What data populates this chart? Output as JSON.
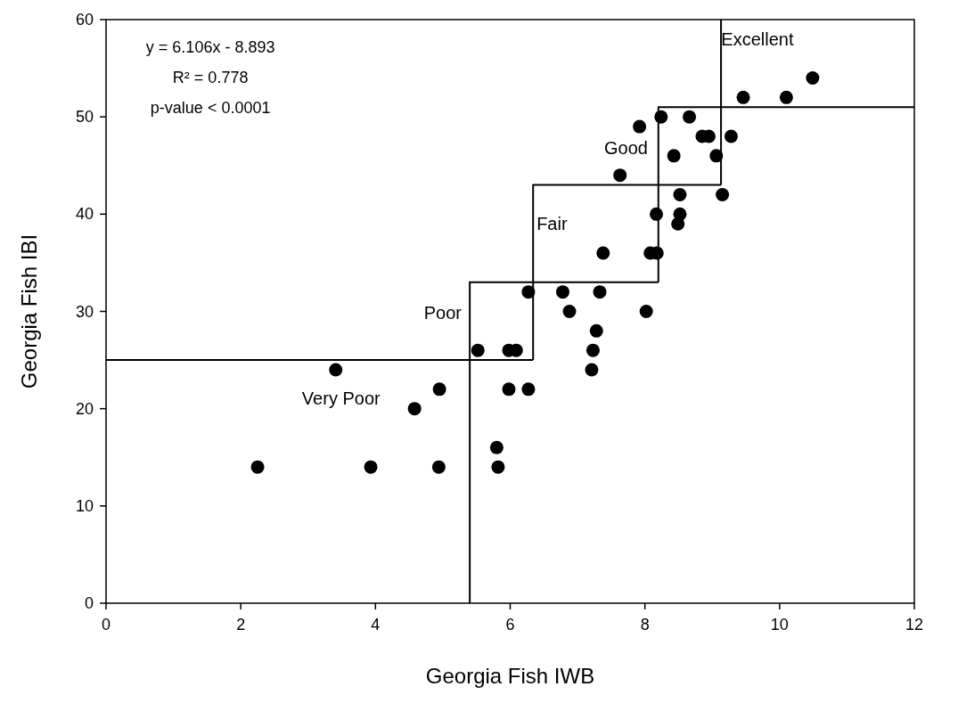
{
  "chart_data": {
    "type": "scatter",
    "xlabel": "Georgia Fish IWB",
    "ylabel": "Georgia Fish IBI",
    "xlim": [
      0,
      12
    ],
    "xticks": [
      0,
      2,
      4,
      6,
      8,
      10,
      12
    ],
    "ylim": [
      0,
      60
    ],
    "yticks": [
      0,
      10,
      20,
      30,
      40,
      50,
      60
    ],
    "grid": false,
    "marker": "circle",
    "annotations": [
      "y = 6.106x - 8.893",
      "R² = 0.778",
      "p-value < 0.0001",
      "Very Poor",
      "Poor",
      "Fair",
      "Good",
      "Excellent"
    ],
    "series": [
      {
        "color": "#000000",
        "x": [
          2.25,
          3.41,
          3.93,
          4.58,
          4.95,
          4.94,
          5.52,
          5.98,
          6.09,
          5.98,
          6.27,
          6.27,
          6.78,
          7.33,
          6.88,
          7.28,
          7.23,
          7.21,
          8.02,
          5.8,
          5.82,
          7.38,
          8.08,
          8.18,
          8.17,
          8.52,
          8.49,
          8.52,
          9.15,
          8.43,
          9.06,
          8.85,
          8.95,
          9.28,
          7.63,
          7.92,
          8.24,
          8.66,
          9.46,
          10.1,
          10.49
        ],
        "values": [
          14,
          24,
          14,
          20,
          22,
          14,
          26,
          26,
          26,
          22,
          22,
          32,
          32,
          32,
          30,
          28,
          26,
          24,
          30,
          16,
          14,
          36,
          36,
          36,
          40,
          40,
          39,
          42,
          42,
          46,
          46,
          48,
          48,
          48,
          44,
          49,
          50,
          50,
          52,
          52,
          54
        ]
      },
      {
        "type": "line",
        "color": "#000000",
        "marker": "none",
        "line_style": "solid",
        "x": [
          0,
          6.34,
          null,
          5.4,
          5.4,
          8.2,
          null,
          6.34,
          6.34,
          9.13,
          null,
          8.2,
          8.2,
          12,
          null,
          9.13,
          9.13
        ],
        "values": [
          25,
          25,
          null,
          0,
          33,
          33,
          null,
          25,
          43,
          43,
          null,
          33,
          51,
          51,
          null,
          43,
          60
        ]
      }
    ]
  }
}
